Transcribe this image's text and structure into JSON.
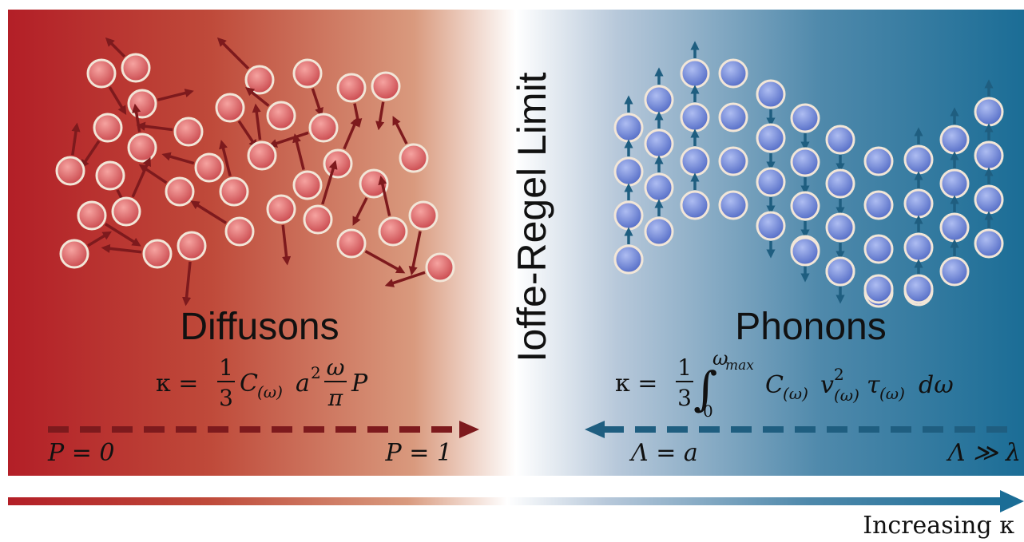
{
  "limit_label": "Ioffe-Regel Limit",
  "diffusons": {
    "title": "Diffusons",
    "formula": {
      "lhs": "κ =",
      "frac_num": "1",
      "frac_den": "3",
      "c": "C",
      "c_sub": "(ω)",
      "a": "a",
      "a_sup": "2",
      "frac2_num": "ω",
      "frac2_den": "π",
      "p": "P"
    },
    "scale": {
      "start": "P = 0",
      "end": "P = 1"
    }
  },
  "phonons": {
    "title": "Phonons",
    "formula": {
      "lhs": "κ =",
      "frac_num": "1",
      "frac_den": "3",
      "integral": "∫",
      "upper": "ω",
      "upper_sub": "max",
      "lower": "0",
      "c": "C",
      "c_sub": "(ω)",
      "v": "v",
      "v_sup": "2",
      "v_sub": "(ω)",
      "tau": "τ",
      "tau_sub": "(ω)",
      "d": "dω"
    },
    "scale": {
      "start": "Λ = a",
      "end": "Λ ≫ λ"
    }
  },
  "gradient_axis": {
    "label": "Increasing κ"
  }
}
